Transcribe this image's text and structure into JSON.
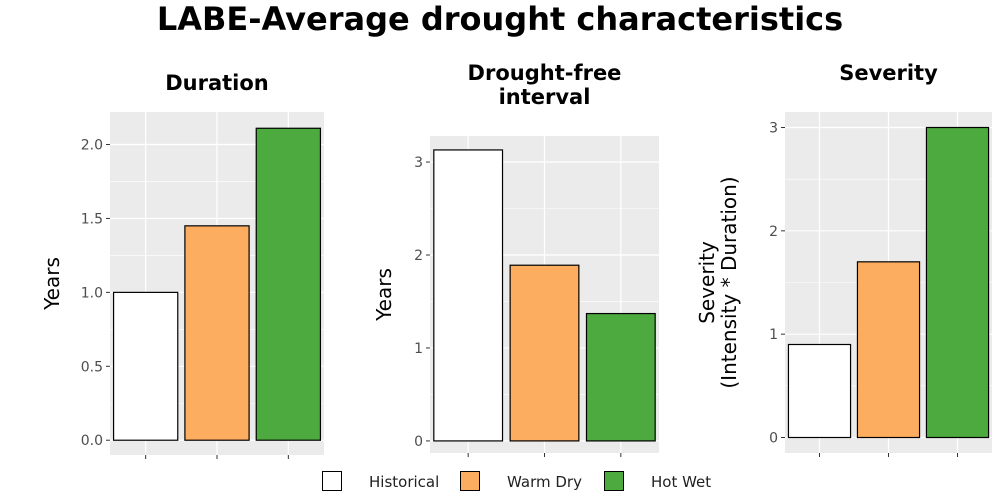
{
  "title": "LABE-Average drought characteristics",
  "colors": {
    "panel_bg": "#ebebeb",
    "grid": "#ffffff",
    "bar_outline": "#000000",
    "Historical": "#ffffff",
    "Warm Dry": "#fdad60",
    "Hot Wet": "#4daa3f"
  },
  "legend": [
    "Historical",
    "Warm Dry",
    "Hot Wet"
  ],
  "chart_data": [
    {
      "type": "bar",
      "title": "Duration",
      "ylabel": "Years",
      "categories": [
        "Historical",
        "Warm Dry",
        "Hot Wet"
      ],
      "values": [
        1.0,
        1.45,
        2.11
      ],
      "ylim": [
        -0.1,
        2.22
      ],
      "yticks": [
        "0.0",
        "0.5",
        "1.0",
        "1.5",
        "2.0"
      ],
      "grid": true
    },
    {
      "type": "bar",
      "title": "Drought-free interval",
      "ylabel": "Years",
      "categories": [
        "Historical",
        "Warm Dry",
        "Hot Wet"
      ],
      "values": [
        3.13,
        1.89,
        1.37
      ],
      "ylim": [
        -0.13,
        3.28
      ],
      "yticks": [
        "0",
        "1",
        "2",
        "3"
      ],
      "grid": true
    },
    {
      "type": "bar",
      "title": "Severity",
      "ylabel": "Severity\n(Intensity * Duration)",
      "categories": [
        "Historical",
        "Warm Dry",
        "Hot Wet"
      ],
      "values": [
        0.9,
        1.7,
        3.0
      ],
      "ylim": [
        -0.15,
        3.15
      ],
      "yticks": [
        "0",
        "1",
        "2",
        "3"
      ],
      "grid": true
    }
  ]
}
